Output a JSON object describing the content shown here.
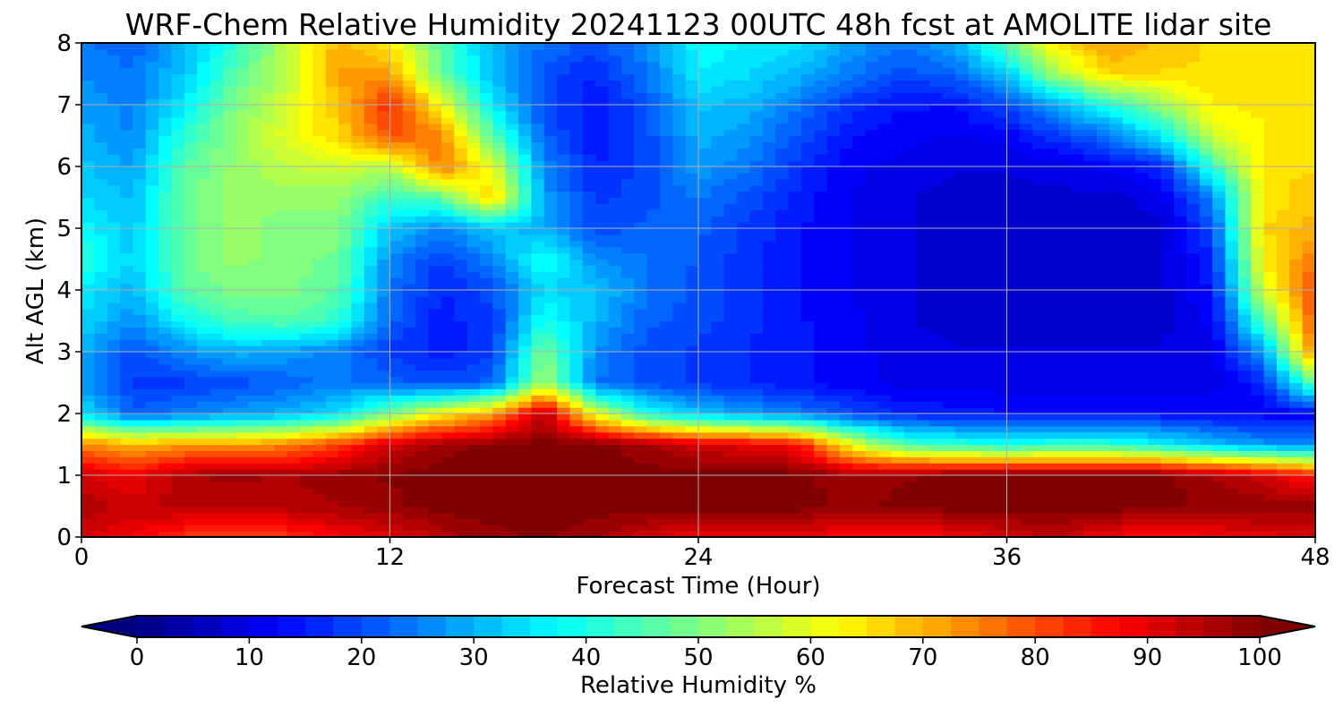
{
  "chart_data": {
    "type": "heatmap",
    "title": "WRF-Chem Relative Humidity 20241123 00UTC 48h fcst at AMOLITE lidar site",
    "xlabel": "Forecast Time (Hour)",
    "ylabel": "Alt AGL (km)",
    "xlim": [
      0,
      48
    ],
    "ylim": [
      0,
      8
    ],
    "xticks": [
      "0",
      "12",
      "24",
      "36",
      "48"
    ],
    "yticks": [
      "0",
      "1",
      "2",
      "3",
      "4",
      "5",
      "6",
      "7",
      "8"
    ],
    "grid": true,
    "colormap": "jet",
    "colorbar": {
      "label": "Relative Humidity %",
      "range": [
        0,
        100
      ],
      "ticks": [
        "0",
        "10",
        "20",
        "30",
        "40",
        "50",
        "60",
        "70",
        "80",
        "90",
        "100"
      ],
      "extend": "both",
      "orientation": "horizontal"
    },
    "x": [
      0,
      2,
      4,
      6,
      8,
      10,
      12,
      14,
      16,
      18,
      20,
      22,
      24,
      26,
      28,
      30,
      32,
      34,
      36,
      38,
      40,
      42,
      44,
      46,
      48
    ],
    "y": [
      0,
      0.5,
      1,
      1.5,
      2,
      2.5,
      3,
      3.5,
      4,
      4.5,
      5,
      5.5,
      6,
      6.5,
      7,
      7.5,
      8
    ],
    "z": [
      [
        92,
        88,
        82,
        80,
        82,
        88,
        90,
        95,
        98,
        99,
        97,
        92,
        88,
        88,
        90,
        85,
        86,
        88,
        92,
        94,
        88,
        86,
        88,
        90,
        92
      ],
      [
        96,
        93,
        95,
        94,
        95,
        96,
        98,
        100,
        100,
        100,
        100,
        100,
        100,
        100,
        100,
        98,
        100,
        100,
        100,
        100,
        100,
        100,
        98,
        98,
        98
      ],
      [
        92,
        88,
        96,
        97,
        96,
        98,
        99,
        100,
        100,
        100,
        100,
        100,
        100,
        100,
        100,
        96,
        98,
        100,
        100,
        100,
        100,
        100,
        96,
        92,
        85
      ],
      [
        75,
        70,
        72,
        72,
        75,
        82,
        92,
        98,
        99,
        100,
        100,
        97,
        92,
        90,
        86,
        60,
        45,
        42,
        40,
        42,
        42,
        38,
        32,
        28,
        26
      ],
      [
        35,
        22,
        25,
        28,
        30,
        35,
        50,
        62,
        72,
        95,
        60,
        40,
        32,
        28,
        25,
        20,
        16,
        15,
        14,
        14,
        14,
        14,
        13,
        12,
        12
      ],
      [
        28,
        18,
        18,
        20,
        22,
        25,
        22,
        20,
        22,
        55,
        24,
        20,
        18,
        16,
        14,
        12,
        10,
        10,
        10,
        10,
        10,
        10,
        10,
        16,
        48
      ],
      [
        30,
        20,
        26,
        30,
        28,
        25,
        18,
        15,
        18,
        50,
        26,
        20,
        18,
        16,
        14,
        12,
        10,
        9,
        9,
        9,
        9,
        9,
        10,
        28,
        76
      ],
      [
        34,
        26,
        38,
        44,
        46,
        42,
        22,
        15,
        18,
        40,
        30,
        22,
        20,
        17,
        14,
        12,
        9,
        8,
        8,
        8,
        8,
        8,
        12,
        45,
        80
      ],
      [
        36,
        30,
        46,
        50,
        50,
        46,
        24,
        16,
        20,
        34,
        32,
        24,
        20,
        17,
        14,
        11,
        9,
        8,
        7,
        7,
        7,
        8,
        14,
        58,
        82
      ],
      [
        42,
        33,
        48,
        52,
        50,
        48,
        26,
        18,
        26,
        40,
        26,
        24,
        21,
        17,
        14,
        11,
        9,
        8,
        7,
        7,
        7,
        8,
        16,
        64,
        76
      ],
      [
        38,
        32,
        48,
        52,
        50,
        50,
        32,
        26,
        32,
        30,
        20,
        22,
        22,
        18,
        14,
        11,
        9,
        8,
        7,
        7,
        7,
        8,
        20,
        66,
        70
      ],
      [
        34,
        31,
        48,
        52,
        52,
        52,
        42,
        46,
        68,
        28,
        18,
        20,
        24,
        20,
        15,
        11,
        9,
        8,
        8,
        8,
        8,
        10,
        26,
        64,
        68
      ],
      [
        32,
        28,
        46,
        52,
        56,
        58,
        56,
        76,
        60,
        26,
        16,
        20,
        28,
        24,
        17,
        12,
        10,
        9,
        9,
        10,
        12,
        16,
        42,
        66,
        66
      ],
      [
        30,
        26,
        42,
        52,
        60,
        66,
        80,
        74,
        46,
        22,
        14,
        20,
        30,
        27,
        20,
        14,
        12,
        11,
        12,
        18,
        24,
        36,
        58,
        64,
        66
      ],
      [
        28,
        25,
        36,
        50,
        58,
        68,
        84,
        62,
        36,
        20,
        14,
        21,
        32,
        30,
        24,
        17,
        14,
        14,
        20,
        30,
        40,
        52,
        64,
        64,
        66
      ],
      [
        26,
        24,
        32,
        46,
        56,
        72,
        72,
        48,
        30,
        20,
        16,
        24,
        36,
        34,
        30,
        24,
        20,
        22,
        32,
        54,
        66,
        66,
        66,
        64,
        66
      ],
      [
        24,
        22,
        30,
        42,
        56,
        70,
        64,
        46,
        30,
        24,
        20,
        26,
        38,
        36,
        34,
        28,
        24,
        30,
        46,
        66,
        72,
        68,
        66,
        64,
        66
      ]
    ]
  }
}
